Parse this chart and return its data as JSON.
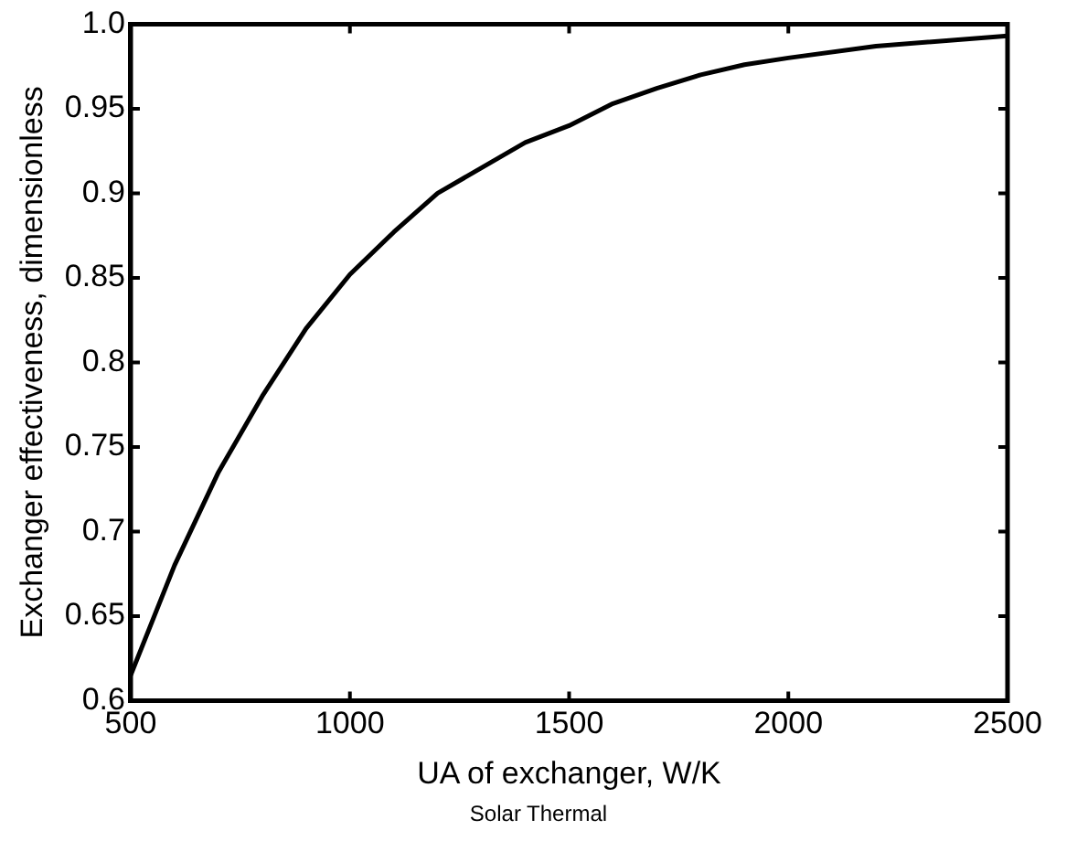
{
  "chart_data": {
    "type": "line",
    "xlabel": "UA of exchanger, W/K",
    "ylabel": "Exchanger effectiveness, dimensionless",
    "x": [
      500,
      600,
      700,
      800,
      900,
      1000,
      1100,
      1200,
      1300,
      1400,
      1500,
      1600,
      1700,
      1800,
      1900,
      2000,
      2200,
      2500
    ],
    "series": [
      {
        "color": "#000000",
        "values": [
          0.615,
          0.68,
          0.735,
          0.78,
          0.82,
          0.852,
          0.877,
          0.9,
          0.915,
          0.93,
          0.94,
          0.953,
          0.962,
          0.97,
          0.976,
          0.98,
          0.987,
          0.993
        ]
      }
    ],
    "xlim": [
      500,
      2500
    ],
    "xticks": [
      500,
      1000,
      1500,
      2000,
      2500
    ],
    "ylim": [
      0.6,
      1.0
    ],
    "yticks": [
      0.6,
      0.65,
      0.7,
      0.75,
      0.8,
      0.85,
      0.9,
      0.95,
      {
        "value": 1.0,
        "label": "1.0"
      }
    ],
    "grid": false,
    "legend": false,
    "marker": "none",
    "line_style": "solid",
    "annotations": [
      "Solar Thermal"
    ]
  }
}
